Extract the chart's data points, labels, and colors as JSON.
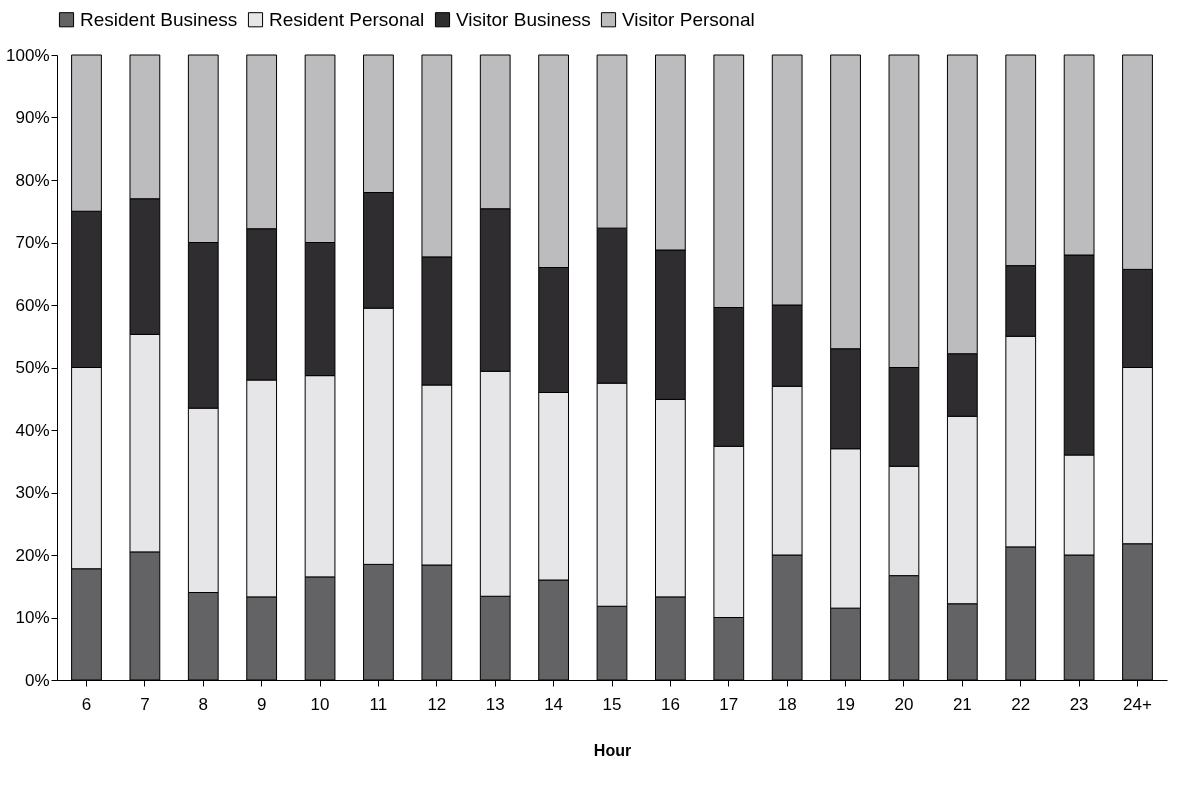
{
  "chart_data": {
    "type": "bar",
    "stacked": true,
    "xlabel": "Hour",
    "legend": "top",
    "categories": [
      "6",
      "7",
      "8",
      "9",
      "10",
      "11",
      "12",
      "13",
      "14",
      "15",
      "16",
      "17",
      "18",
      "19",
      "20",
      "21",
      "22",
      "23",
      "24+"
    ],
    "series": [
      {
        "name": "Resident Business",
        "color": "#636366",
        "values": [
          17.8,
          20.5,
          14,
          13.3,
          16.5,
          18.5,
          18.4,
          13.4,
          16,
          11.8,
          13.3,
          10,
          20,
          11.5,
          16.7,
          12.2,
          21.3,
          20,
          21.8
        ]
      },
      {
        "name": "Resident Personal",
        "color": "#e6e6e8",
        "values": [
          32.2,
          34.8,
          29.5,
          34.7,
          32.2,
          41,
          28.8,
          36,
          30,
          35.7,
          31.6,
          27.4,
          27,
          25.5,
          17.5,
          30,
          33.7,
          16,
          28.2
        ]
      },
      {
        "name": "Visitor Business",
        "color": "#2f2d2f",
        "values": [
          25,
          21.7,
          26.5,
          24.2,
          21.3,
          18.5,
          20.5,
          26,
          20,
          24.8,
          23.9,
          22.2,
          13,
          16,
          15.8,
          10,
          11.3,
          32,
          15.7
        ]
      },
      {
        "name": "Visitor Personal",
        "color": "#bcbcbe",
        "values": [
          25,
          23,
          30,
          27.8,
          30,
          22,
          32.3,
          24.6,
          34,
          27.7,
          31.2,
          40.4,
          40,
          47,
          50,
          47.8,
          33.7,
          32,
          34.3
        ]
      }
    ],
    "ylim": [
      0,
      100
    ],
    "yticks": [
      {
        "value": 0,
        "label": "0%"
      },
      {
        "value": 10,
        "label": "10%"
      },
      {
        "value": 20,
        "label": "20%"
      },
      {
        "value": 30,
        "label": "30%"
      },
      {
        "value": 40,
        "label": "40%"
      },
      {
        "value": 50,
        "label": "50%"
      },
      {
        "value": 60,
        "label": "60%"
      },
      {
        "value": 70,
        "label": "70%"
      },
      {
        "value": 80,
        "label": "80%"
      },
      {
        "value": 90,
        "label": "90%"
      },
      {
        "value": 100,
        "label": "100%"
      }
    ]
  }
}
